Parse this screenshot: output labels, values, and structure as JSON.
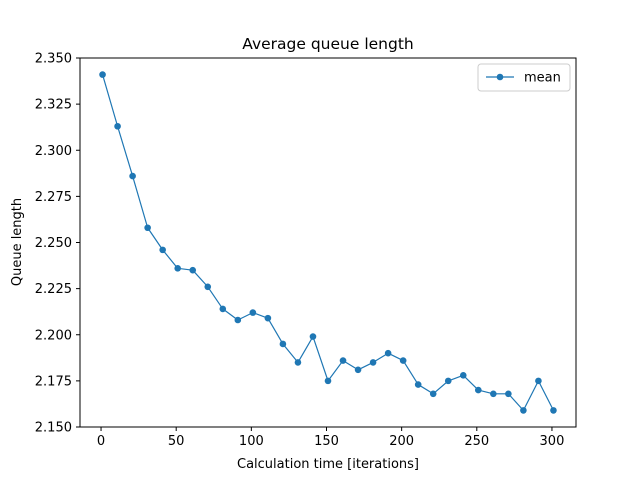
{
  "chart_data": {
    "type": "line",
    "title": "Average queue length",
    "xlabel": "Calculation time [iterations]",
    "ylabel": "Queue length",
    "xlim": [
      -14,
      316
    ],
    "ylim": [
      2.15,
      2.35
    ],
    "xticks": [
      0,
      50,
      100,
      150,
      200,
      250,
      300
    ],
    "xtick_labels": [
      "0",
      "50",
      "100",
      "150",
      "200",
      "250",
      "300"
    ],
    "yticks": [
      2.15,
      2.175,
      2.2,
      2.225,
      2.25,
      2.275,
      2.3,
      2.325,
      2.35
    ],
    "ytick_labels": [
      "2.150",
      "2.175",
      "2.200",
      "2.225",
      "2.250",
      "2.275",
      "2.300",
      "2.325",
      "2.350"
    ],
    "grid": false,
    "legend": {
      "position": "upper right",
      "entries": [
        "mean"
      ]
    },
    "series": [
      {
        "name": "mean",
        "color": "#1f77b4",
        "marker": "circle",
        "x": [
          1,
          11,
          21,
          31,
          41,
          51,
          61,
          71,
          81,
          91,
          101,
          111,
          121,
          131,
          141,
          151,
          161,
          171,
          181,
          191,
          201,
          211,
          221,
          231,
          241,
          251,
          261,
          271,
          281,
          291,
          301
        ],
        "y": [
          2.341,
          2.313,
          2.286,
          2.258,
          2.246,
          2.236,
          2.235,
          2.226,
          2.214,
          2.208,
          2.212,
          2.209,
          2.195,
          2.185,
          2.199,
          2.175,
          2.186,
          2.181,
          2.185,
          2.19,
          2.186,
          2.173,
          2.168,
          2.175,
          2.178,
          2.17,
          2.168,
          2.168,
          2.159,
          2.175,
          2.159
        ]
      }
    ]
  }
}
